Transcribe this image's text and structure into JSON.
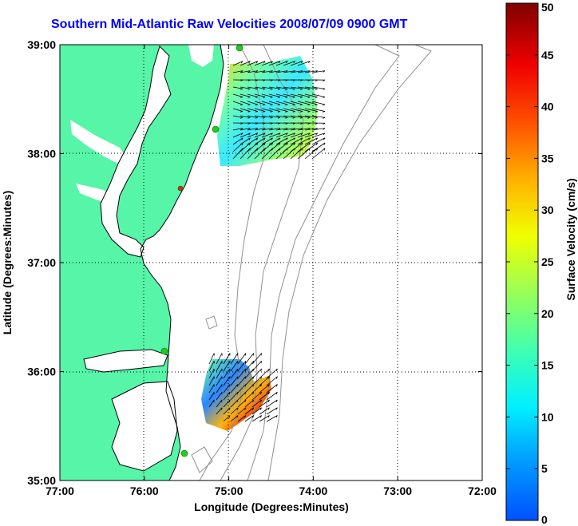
{
  "title": "Southern Mid-Atlantic Raw Velocities 2008/07/09 0900 GMT",
  "xlabel": "Longitude (Degrees:Minutes)",
  "ylabel": "Latitude (Degrees:Minutes)",
  "colorbar_label": "Surface Velocity (cm/s)",
  "colorbar_range": [
    0,
    50
  ],
  "colorbar_ticks": [
    "0",
    "5",
    "10",
    "15",
    "20",
    "25",
    "30",
    "35",
    "40",
    "45",
    "50"
  ],
  "xticks": [
    {
      "label": "77:00",
      "lon": -77
    },
    {
      "label": "76:00",
      "lon": -76
    },
    {
      "label": "75:00",
      "lon": -75
    },
    {
      "label": "74:00",
      "lon": -74
    },
    {
      "label": "73:00",
      "lon": -73
    },
    {
      "label": "72:00",
      "lon": -72
    }
  ],
  "yticks": [
    {
      "label": "35:00",
      "lat": 35
    },
    {
      "label": "36:00",
      "lat": 36
    },
    {
      "label": "37:00",
      "lat": 37
    },
    {
      "label": "38:00",
      "lat": 38
    },
    {
      "label": "39:00",
      "lat": 39
    }
  ],
  "colors": {
    "land": "#56f5a8",
    "water": "#ffffff",
    "title": "#0000ff",
    "grid": "#000000",
    "bathymetry": "#909090",
    "station": "#22cc22",
    "station_alt": "#e02020"
  }
}
